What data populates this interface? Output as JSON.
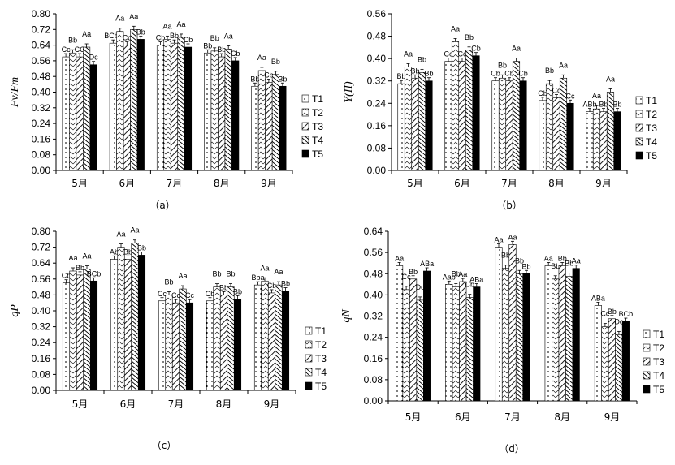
{
  "chart_data": [
    {
      "type": "bar",
      "caption": "（a）",
      "ylabel": "Fv/Fm",
      "ylim": [
        0,
        0.8
      ],
      "yticks": [
        "0.00",
        "0.08",
        "0.16",
        "0.24",
        "0.32",
        "0.40",
        "0.48",
        "0.56",
        "0.64",
        "0.72",
        "0.80"
      ],
      "categories": [
        "5月",
        "6月",
        "7月",
        "8月",
        "9月"
      ],
      "legend": [
        "T1",
        "T2",
        "T3",
        "T4",
        "T5"
      ],
      "series": [
        {
          "name": "T1",
          "values": [
            0.58,
            0.65,
            0.64,
            0.6,
            0.43
          ],
          "labels": [
            "Cc",
            "BCbc",
            "Cb",
            "Bb",
            "Bb"
          ]
        },
        {
          "name": "T2",
          "values": [
            0.6,
            0.71,
            0.67,
            0.61,
            0.51
          ],
          "labels": [
            "Bb",
            "Aa",
            "Aa",
            "Bb",
            "Aa"
          ]
        },
        {
          "name": "T3",
          "values": [
            0.58,
            0.64,
            0.65,
            0.58,
            0.45
          ],
          "labels": [
            "CC",
            "Cc",
            "Bb",
            "Bb",
            "Cb"
          ]
        },
        {
          "name": "T4",
          "values": [
            0.63,
            0.72,
            0.68,
            0.62,
            0.49
          ],
          "labels": [
            "Aa",
            "Aa",
            "Aa",
            "Aa",
            "Bb"
          ]
        },
        {
          "name": "T5",
          "values": [
            0.54,
            0.67,
            0.63,
            0.56,
            0.43
          ],
          "labels": [
            "Dc",
            "Bb",
            "Cb",
            "Cb",
            "Bb"
          ]
        }
      ]
    },
    {
      "type": "bar",
      "caption": "（b）",
      "ylabel": "Y(II)",
      "ylim": [
        0,
        0.56
      ],
      "yticks": [
        "0.00",
        "0.08",
        "0.16",
        "0.24",
        "0.32",
        "0.40",
        "0.48",
        "0.56"
      ],
      "categories": [
        "5月",
        "6月",
        "7月",
        "8月",
        "9月"
      ],
      "legend": [
        "T1",
        "T2",
        "T3",
        "T4",
        "T5"
      ],
      "series": [
        {
          "name": "T1",
          "values": [
            0.31,
            0.39,
            0.32,
            0.25,
            0.21
          ],
          "labels": [
            "Bb",
            "Cc",
            "Cb",
            "Cb",
            "ABb"
          ]
        },
        {
          "name": "T2",
          "values": [
            0.37,
            0.46,
            0.33,
            0.31,
            0.22
          ],
          "labels": [
            "Aa",
            "Aa",
            "Bb",
            "Bb",
            "Aa"
          ]
        },
        {
          "name": "T3",
          "values": [
            0.33,
            0.39,
            0.32,
            0.26,
            0.21
          ],
          "labels": [
            "Bb",
            "Cc",
            "Cb",
            "Cc",
            "Bb"
          ]
        },
        {
          "name": "T4",
          "values": [
            0.35,
            0.43,
            0.39,
            0.33,
            0.28
          ],
          "labels": [
            "Bb",
            "Bb",
            "Aa",
            "Aa",
            "Aa"
          ]
        },
        {
          "name": "T5",
          "values": [
            0.32,
            0.41,
            0.32,
            0.24,
            0.21
          ],
          "labels": [
            "Bb",
            "Cb",
            "Cb",
            "Cc",
            "Bb"
          ]
        }
      ]
    },
    {
      "type": "bar",
      "caption": "（c）",
      "ylabel": "qP",
      "ylim": [
        0,
        0.8
      ],
      "yticks": [
        "0.00",
        "0.08",
        "0.16",
        "0.24",
        "0.32",
        "0.40",
        "0.48",
        "0.56",
        "0.64",
        "0.72",
        "0.80"
      ],
      "categories": [
        "5月",
        "6月",
        "7月",
        "8月",
        "9月"
      ],
      "legend": [
        "T1",
        "T2",
        "T3",
        "T4",
        "T5"
      ],
      "series": [
        {
          "name": "T1",
          "values": [
            0.54,
            0.66,
            0.45,
            0.45,
            0.53
          ],
          "labels": [
            "Cb",
            "Ab",
            "Cc",
            "Cb",
            "Bba"
          ]
        },
        {
          "name": "T2",
          "values": [
            0.6,
            0.72,
            0.48,
            0.52,
            0.55
          ],
          "labels": [
            "Aa",
            "Aa",
            "Bb",
            "Bb",
            "Aa"
          ]
        },
        {
          "name": "T3",
          "values": [
            0.58,
            0.66,
            0.44,
            0.48,
            0.49
          ],
          "labels": [
            "Bb",
            "Bb",
            "Cc",
            "Bb",
            "Cb"
          ]
        },
        {
          "name": "T4",
          "values": [
            0.61,
            0.74,
            0.51,
            0.52,
            0.53
          ],
          "labels": [
            "Aa",
            "Aa",
            "Aa",
            "Bb",
            "Aa"
          ]
        },
        {
          "name": "T5",
          "values": [
            0.55,
            0.68,
            0.44,
            0.46,
            0.5
          ],
          "labels": [
            "BCb",
            "Bb",
            "Cc",
            "Bb",
            "Bb"
          ]
        }
      ]
    },
    {
      "type": "bar",
      "caption": "（d）",
      "ylabel": "qN",
      "ylim": [
        0,
        0.64
      ],
      "yticks": [
        "0.00",
        "0.08",
        "0.16",
        "0.24",
        "0.32",
        "0.40",
        "0.48",
        "0.56",
        "0.64"
      ],
      "categories": [
        "5月",
        "6月",
        "7月",
        "8月",
        "9月"
      ],
      "legend": [
        "T1",
        "T2",
        "T3",
        "T4",
        "T5"
      ],
      "series": [
        {
          "name": "T1",
          "values": [
            0.51,
            0.44,
            0.58,
            0.51,
            0.36
          ],
          "labels": [
            "Aa",
            "Aab",
            "Aa",
            "Aa",
            "ABa"
          ]
        },
        {
          "name": "T2",
          "values": [
            0.42,
            0.43,
            0.5,
            0.46,
            0.28
          ],
          "labels": [
            "Cc",
            "Bb",
            "Bb",
            "Bb",
            "Cc"
          ]
        },
        {
          "name": "T3",
          "values": [
            0.46,
            0.45,
            0.59,
            0.51,
            0.31
          ],
          "labels": [
            "Bb",
            "Aa",
            "Aa",
            "Bb",
            "Bb"
          ]
        },
        {
          "name": "T4",
          "values": [
            0.38,
            0.39,
            0.48,
            0.47,
            0.25
          ],
          "labels": [
            "Dc",
            "Cb",
            "Bb",
            "Bb",
            "Dc"
          ]
        },
        {
          "name": "T5",
          "values": [
            0.49,
            0.43,
            0.48,
            0.5,
            0.3
          ],
          "labels": [
            "ABa",
            "ABa",
            "Bb",
            "Aa",
            "BCb"
          ]
        }
      ]
    }
  ]
}
